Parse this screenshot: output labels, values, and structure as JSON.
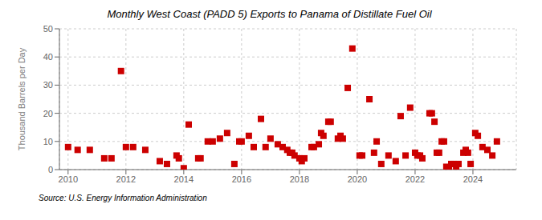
{
  "chart_data": {
    "type": "scatter",
    "title": "Monthly West Coast (PADD 5) Exports to Panama of Distillate Fuel Oil",
    "y_label": "Thousand Barrels per Day",
    "annotations": [
      "Source: U.S. Energy Information Administration"
    ],
    "color": "#cc0000",
    "marker": "square",
    "grid": true,
    "xlim": [
      2009.7,
      2025.5
    ],
    "ylim": [
      0,
      50
    ],
    "xticks": [
      2010,
      2012,
      2014,
      2016,
      2018,
      2020,
      2022,
      2024
    ],
    "yticks": [
      0,
      10,
      20,
      30,
      40,
      50
    ],
    "x": [
      2010.0,
      2010.33,
      2010.75,
      2011.25,
      2011.5,
      2011.83,
      2012.0,
      2012.25,
      2012.67,
      2013.17,
      2013.42,
      2013.75,
      2013.83,
      2014.0,
      2014.17,
      2014.5,
      2014.58,
      2014.83,
      2015.0,
      2015.25,
      2015.5,
      2015.75,
      2015.92,
      2016.0,
      2016.25,
      2016.42,
      2016.67,
      2016.83,
      2017.0,
      2017.25,
      2017.42,
      2017.58,
      2017.67,
      2017.75,
      2017.83,
      2018.0,
      2018.08,
      2018.17,
      2018.42,
      2018.5,
      2018.67,
      2018.75,
      2018.83,
      2019.0,
      2019.08,
      2019.33,
      2019.42,
      2019.5,
      2019.67,
      2019.83,
      2020.08,
      2020.17,
      2020.42,
      2020.58,
      2020.67,
      2020.83,
      2021.08,
      2021.33,
      2021.5,
      2021.67,
      2021.83,
      2022.0,
      2022.08,
      2022.17,
      2022.25,
      2022.5,
      2022.58,
      2022.67,
      2022.75,
      2022.83,
      2022.92,
      2023.0,
      2023.08,
      2023.17,
      2023.25,
      2023.33,
      2023.42,
      2023.5,
      2023.67,
      2023.75,
      2023.83,
      2023.92,
      2024.08,
      2024.17,
      2024.33,
      2024.5,
      2024.67,
      2024.83
    ],
    "values": [
      8,
      7,
      7,
      4,
      4,
      35,
      8,
      8,
      7,
      3,
      2,
      5,
      4,
      0.5,
      16,
      4,
      4,
      10,
      10,
      11,
      13,
      2,
      10,
      10,
      12,
      8,
      18,
      8,
      11,
      9,
      8,
      7,
      6,
      6,
      5,
      4,
      3,
      4,
      8,
      8,
      9,
      13,
      12,
      17,
      17,
      11,
      12,
      11,
      29,
      43,
      5,
      5,
      25,
      6,
      10,
      2,
      5,
      3,
      19,
      5,
      22,
      6,
      5,
      5,
      4,
      20,
      20,
      17,
      6,
      6,
      10,
      10,
      1,
      0.5,
      2,
      2,
      1,
      2,
      6,
      7,
      6,
      2,
      13,
      12,
      8,
      7,
      5,
      10
    ]
  }
}
